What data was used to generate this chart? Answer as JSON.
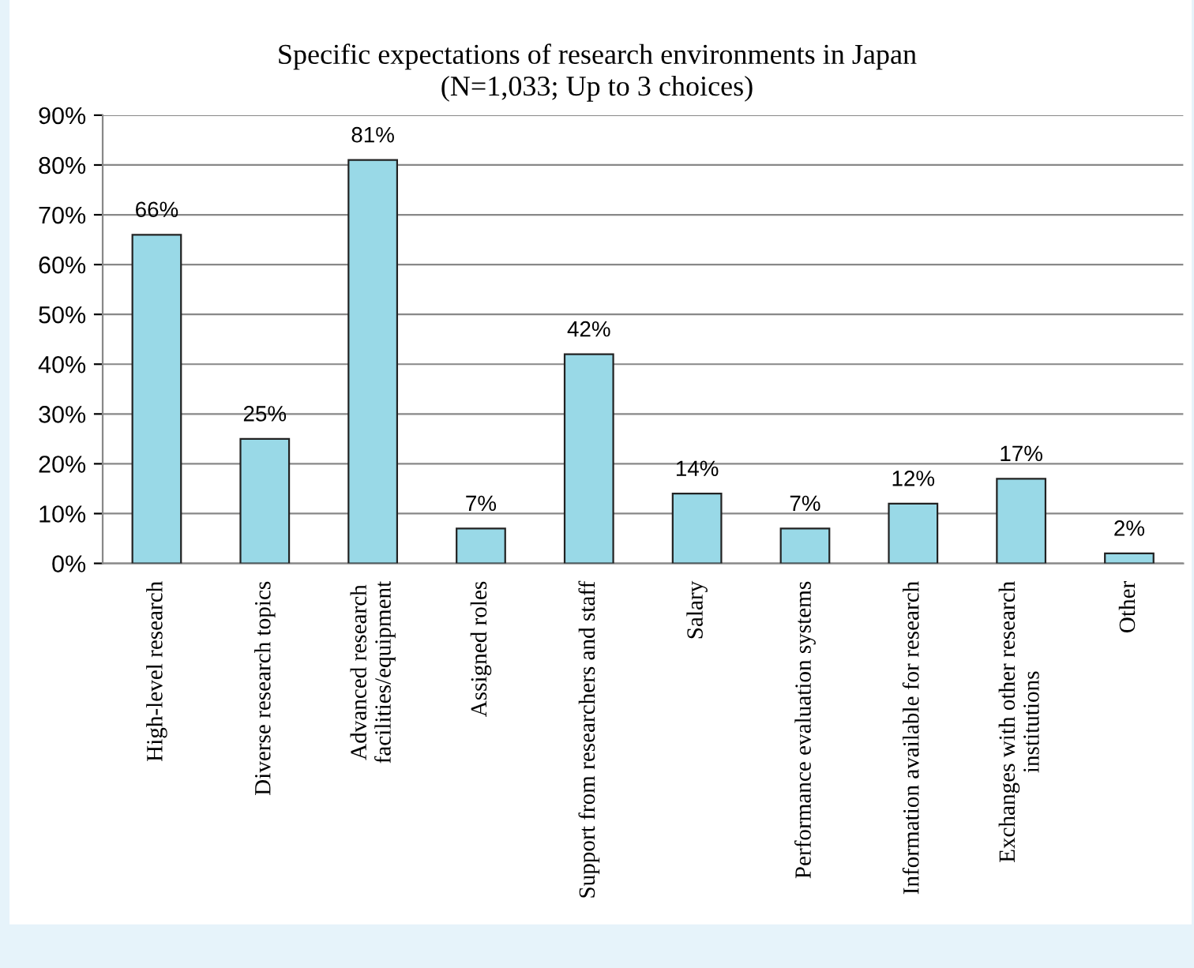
{
  "chart_data": {
    "type": "bar",
    "title": "Specific expectations of research environments in Japan\n(N=1,033; Up to 3 choices)",
    "categories": [
      "High-level research",
      "Diverse research topics",
      "Advanced research\nfacilities/equipment",
      "Assigned roles",
      "Support from researchers and staff",
      "Salary",
      "Performance evaluation systems",
      "Information available for research",
      "Exchanges with other research\ninstitutions",
      "Other"
    ],
    "values": [
      66,
      25,
      81,
      7,
      42,
      14,
      7,
      12,
      17,
      2
    ],
    "value_labels": [
      "66%",
      "25%",
      "81%",
      "7%",
      "42%",
      "14%",
      "7%",
      "12%",
      "17%",
      "2%"
    ],
    "color": "#99d9e7",
    "ylim": [
      0,
      90
    ],
    "yticks": [
      {
        "value": 0,
        "label": "0%"
      },
      {
        "value": 10,
        "label": "10%"
      },
      {
        "value": 20,
        "label": "20%"
      },
      {
        "value": 30,
        "label": "30%"
      },
      {
        "value": 40,
        "label": "40%"
      },
      {
        "value": 50,
        "label": "50%"
      },
      {
        "value": 60,
        "label": "60%"
      },
      {
        "value": 70,
        "label": "70%"
      },
      {
        "value": 80,
        "label": "80%"
      },
      {
        "value": 90,
        "label": "90%"
      }
    ],
    "grid": "y",
    "legend": false
  }
}
